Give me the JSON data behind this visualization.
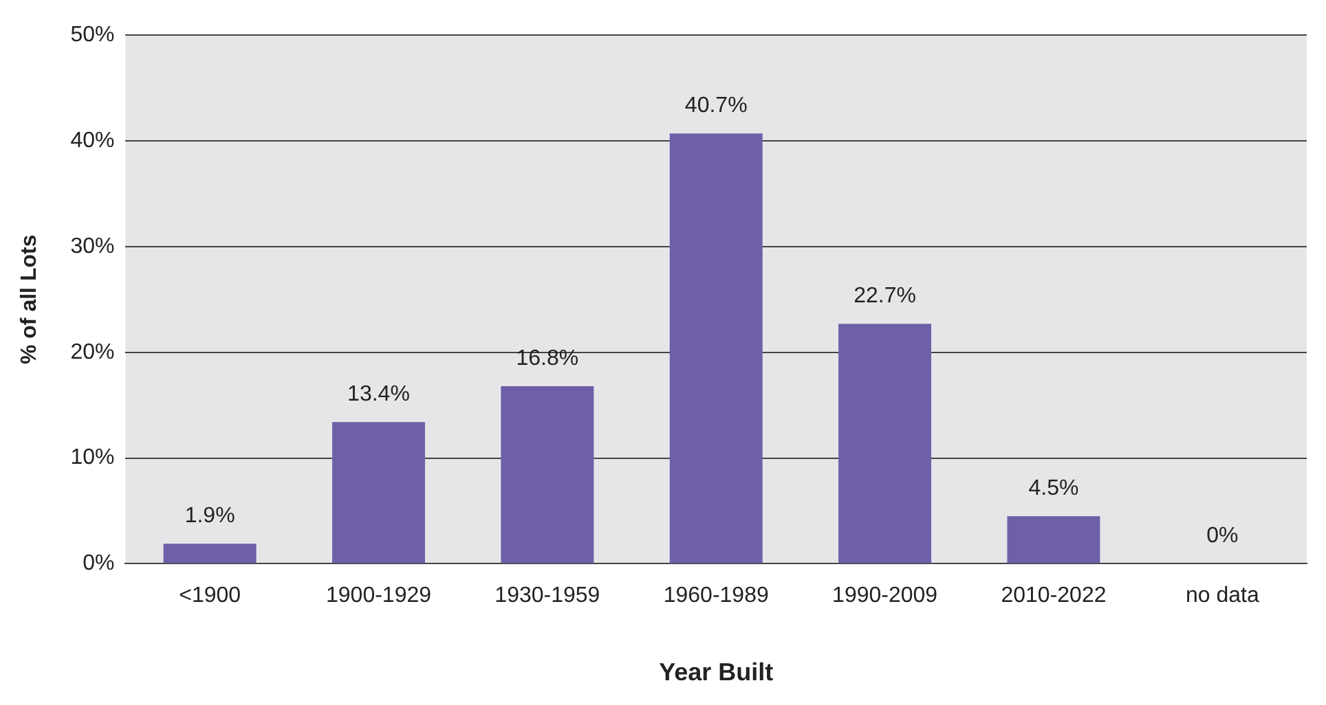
{
  "chart_data": {
    "type": "bar",
    "xlabel": "Year Built",
    "ylabel": "% of all Lots",
    "categories": [
      "<1900",
      "1900-1929",
      "1930-1959",
      "1960-1989",
      "1990-2009",
      "2010-2022",
      "no data"
    ],
    "values": [
      1.9,
      13.4,
      16.8,
      40.7,
      22.7,
      4.5,
      0
    ],
    "value_labels": [
      "1.9%",
      "13.4%",
      "16.8%",
      "40.7%",
      "22.7%",
      "4.5%",
      "0%"
    ],
    "color": "#6f5fa8",
    "ylim": [
      0,
      50
    ],
    "yticks": [
      {
        "value": 0,
        "label": "0%"
      },
      {
        "value": 10,
        "label": "10%"
      },
      {
        "value": 20,
        "label": "20%"
      },
      {
        "value": 30,
        "label": "30%"
      },
      {
        "value": 40,
        "label": "40%"
      },
      {
        "value": 50,
        "label": "50%"
      }
    ],
    "grid": "y",
    "legend": false
  }
}
